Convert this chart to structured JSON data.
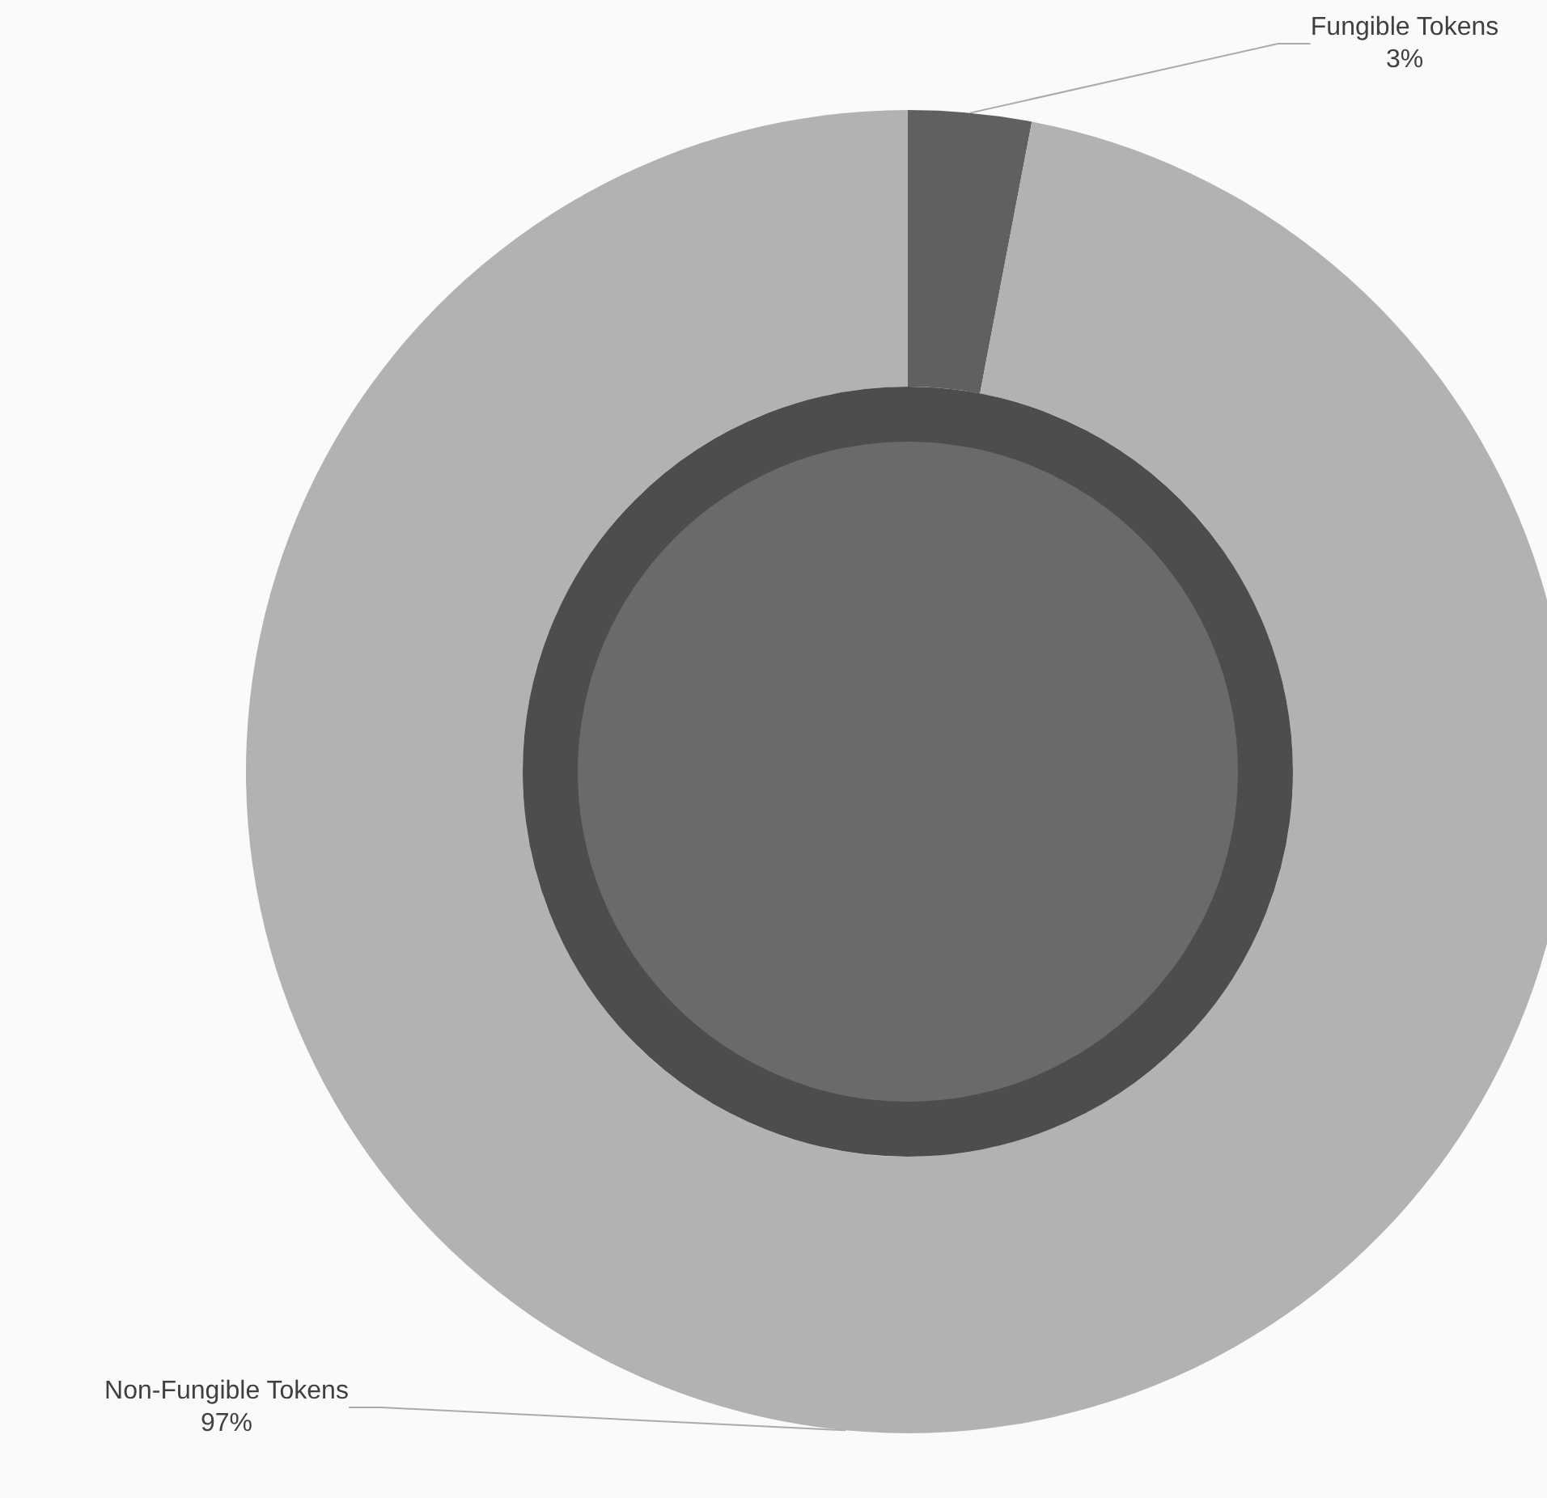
{
  "chart_data": {
    "type": "donut",
    "categories": [
      "Fungible Tokens",
      "Non-Fungible Tokens"
    ],
    "values": [
      3,
      97
    ],
    "colors": [
      "#606060",
      "#b2b2b2"
    ],
    "value_labels": [
      "3%",
      "97%"
    ],
    "legend": false
  }
}
